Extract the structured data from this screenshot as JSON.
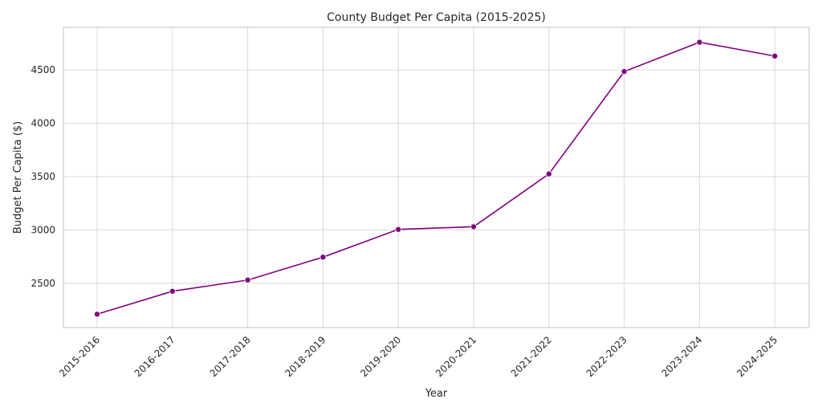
{
  "chart_data": {
    "type": "line",
    "title": "County Budget Per Capita (2015-2025)",
    "xlabel": "Year",
    "ylabel": "Budget Per Capita ($)",
    "categories": [
      "2015-2016",
      "2016-2017",
      "2017-2018",
      "2018-2019",
      "2019-2020",
      "2020-2021",
      "2021-2022",
      "2022-2023",
      "2023-2024",
      "2024-2025"
    ],
    "series": [
      {
        "values": [
          2210,
          2425,
          2530,
          2745,
          3005,
          3030,
          3525,
          4485,
          4760,
          4630
        ],
        "color": "#800080"
      }
    ],
    "yticks": [
      2500,
      3000,
      3500,
      4000,
      4500
    ],
    "ylim": [
      2085,
      4900
    ],
    "grid": true,
    "legend": "none"
  }
}
